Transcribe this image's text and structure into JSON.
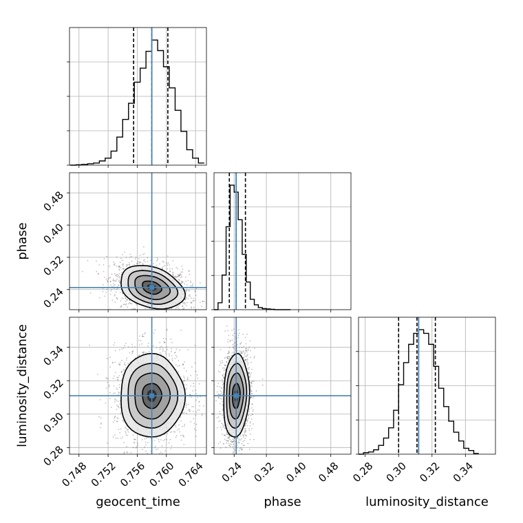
{
  "chart_data": {
    "type": "corner",
    "parameters": [
      {
        "name": "geocent_time",
        "label": "geocent_time",
        "ticks": [
          "0.748",
          "0.752",
          "0.756",
          "0.760",
          "0.764"
        ],
        "range": [
          0.7467,
          0.7655
        ],
        "truth": 0.758,
        "quantiles": [
          0.7555,
          0.758,
          0.7602
        ]
      },
      {
        "name": "phase",
        "label": "phase",
        "ticks": [
          "0.24",
          "0.32",
          "0.40",
          "0.48"
        ],
        "range": [
          0.19,
          0.53
        ],
        "truth": 0.245,
        "quantiles": [
          0.228,
          0.245,
          0.268
        ]
      },
      {
        "name": "luminosity_distance",
        "label": "luminosity_distance",
        "ticks": [
          "0.28",
          "0.30",
          "0.32",
          "0.34"
        ],
        "range": [
          0.276,
          0.358
        ],
        "truth": 0.312,
        "quantiles": [
          0.3,
          0.311,
          0.322
        ]
      }
    ],
    "histograms": {
      "geocent_time": {
        "bins": [
          0.7468,
          0.7476,
          0.7484,
          0.7492,
          0.75,
          0.7508,
          0.7516,
          0.7524,
          0.7532,
          0.754,
          0.7548,
          0.7556,
          0.7564,
          0.7572,
          0.758,
          0.7588,
          0.7596,
          0.7604,
          0.7612,
          0.762,
          0.7628,
          0.7636,
          0.7644,
          0.7652
        ],
        "counts": [
          0,
          0.5,
          1,
          2,
          3,
          6,
          10,
          20,
          40,
          65,
          88,
          118,
          138,
          162,
          178,
          163,
          140,
          110,
          78,
          48,
          22,
          10,
          3
        ]
      },
      "phase": {
        "bins": [
          0.19,
          0.2,
          0.21,
          0.22,
          0.23,
          0.24,
          0.25,
          0.26,
          0.27,
          0.28,
          0.29,
          0.3,
          0.31,
          0.32,
          0.33,
          0.34,
          0.35,
          0.36,
          0.37,
          0.38
        ],
        "counts": [
          0,
          10,
          50,
          120,
          180,
          170,
          130,
          80,
          40,
          15,
          7,
          3,
          1.5,
          1,
          0.5,
          0,
          0,
          0,
          0
        ]
      },
      "luminosity_distance": {
        "bins": [
          0.276,
          0.279,
          0.282,
          0.285,
          0.288,
          0.291,
          0.294,
          0.297,
          0.3,
          0.303,
          0.306,
          0.309,
          0.312,
          0.315,
          0.318,
          0.321,
          0.324,
          0.327,
          0.33,
          0.333,
          0.336,
          0.339,
          0.342,
          0.345,
          0.348
        ],
        "counts": [
          0,
          2,
          3,
          6,
          12,
          22,
          36,
          60,
          95,
          125,
          150,
          165,
          170,
          165,
          150,
          120,
          90,
          65,
          45,
          30,
          18,
          8,
          5,
          1
        ]
      }
    },
    "pairs": [
      {
        "x": "geocent_time",
        "y": "phase",
        "center": [
          0.758,
          0.245
        ],
        "sigma": [
          0.0022,
          0.027
        ],
        "correlation": -0.3
      },
      {
        "x": "geocent_time",
        "y": "luminosity_distance",
        "center": [
          0.758,
          0.311
        ],
        "sigma": [
          0.0022,
          0.0125
        ],
        "correlation": 0.0
      },
      {
        "x": "phase",
        "y": "luminosity_distance",
        "center": [
          0.245,
          0.311
        ],
        "sigma": [
          0.016,
          0.0125
        ],
        "correlation": 0.1
      }
    ],
    "truth_color": "#4682b4",
    "line_color": "#000000",
    "grid": true
  }
}
